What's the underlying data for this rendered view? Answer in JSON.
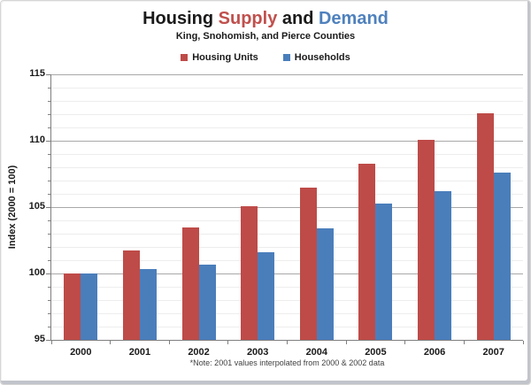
{
  "title": {
    "segments": [
      {
        "text": "Housing ",
        "color": "#1a1a1a"
      },
      {
        "text": "Supply",
        "color": "#C0504D"
      },
      {
        "text": " and ",
        "color": "#1a1a1a"
      },
      {
        "text": "Demand",
        "color": "#4F81BD"
      }
    ]
  },
  "subtitle": "King, Snohomish, and Pierce Counties",
  "legend": [
    {
      "label": "Housing Units",
      "color": "#BE4B48"
    },
    {
      "label": "Households",
      "color": "#4A7EBB"
    }
  ],
  "note": "*Note: 2001 values interpolated from 2000 & 2002 data",
  "y_axis": {
    "title": "Index (2000 = 100)",
    "tick_labels": [
      "95",
      "100",
      "105",
      "110",
      "115"
    ]
  },
  "x_axis": {
    "tick_labels": [
      "2000",
      "2001",
      "2002",
      "2003",
      "2004",
      "2005",
      "2006",
      "2007"
    ]
  },
  "chart_data": {
    "type": "bar",
    "title": "Housing Supply and Demand",
    "subtitle": "King, Snohomish, and Pierce Counties",
    "categories": [
      "2000",
      "2001",
      "2002",
      "2003",
      "2004",
      "2005",
      "2006",
      "2007"
    ],
    "series": [
      {
        "name": "Housing Units",
        "color": "#BE4B48",
        "values": [
          100.0,
          101.75,
          103.5,
          105.1,
          106.5,
          108.3,
          110.1,
          112.1
        ]
      },
      {
        "name": "Households",
        "color": "#4A7EBB",
        "values": [
          100.0,
          100.35,
          100.7,
          101.6,
          103.4,
          105.3,
          106.2,
          107.6
        ]
      }
    ],
    "xlabel": "",
    "ylabel": "Index (2000 = 100)",
    "ylim": [
      95,
      115
    ],
    "y_major_step": 5,
    "y_minor_step": 1,
    "grid": true,
    "legend_position": "top",
    "annotation": "*Note: 2001 values interpolated from 2000 & 2002 data"
  }
}
